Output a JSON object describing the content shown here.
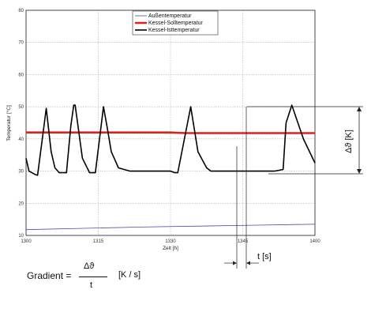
{
  "chart_data": {
    "type": "line",
    "xlabel": "Zeit [h]",
    "ylabel": "Temperatur [°C]",
    "xlim": [
      1300,
      1400
    ],
    "ylim": [
      10,
      80
    ],
    "x_ticks": [
      1300,
      1315,
      1330,
      1345,
      1400
    ],
    "y_ticks": [
      10,
      20,
      30,
      40,
      50,
      60,
      70,
      80
    ],
    "grid": true,
    "legend": {
      "position": "top-center"
    },
    "series": [
      {
        "name": "Außentemperatur",
        "color": "#4a4aa8",
        "x": [
          1300,
          1320,
          1340,
          1360,
          1380,
          1400
        ],
        "y": [
          11.8,
          12.2,
          12.6,
          12.9,
          13.2,
          13.5
        ]
      },
      {
        "name": "Kessel-Solltemperatur",
        "color": "#e0201b",
        "x": [
          1300,
          1350,
          1355,
          1400
        ],
        "y": [
          42,
          42,
          41.8,
          41.8
        ]
      },
      {
        "name": "Kessel-Isttemperatur",
        "color": "#000000",
        "x": [
          1300,
          1301,
          1303,
          1304,
          1307,
          1308.7,
          1310,
          1311.5,
          1314,
          1315.5,
          1316.5,
          1317,
          1319.5,
          1322,
          1322.5,
          1324,
          1326.8,
          1328,
          1329.5,
          1332,
          1336,
          1350,
          1351.5,
          1352.5,
          1357,
          1359.5,
          1362.5,
          1364,
          1368,
          1373.5,
          1374.5,
          1376,
          1380,
          1386,
          1389,
          1390,
          1392,
          1396,
          1400
        ],
        "y": [
          34,
          30,
          29,
          28.7,
          49.5,
          36,
          31,
          29.5,
          29.5,
          44,
          50.5,
          50.5,
          34,
          29.5,
          29.5,
          29.5,
          50,
          44,
          36,
          31,
          30,
          30,
          29.5,
          29.5,
          50,
          36,
          31,
          30,
          30,
          30,
          30,
          30,
          30,
          30,
          30.5,
          45,
          50.5,
          40,
          32.5
        ]
      }
    ],
    "annotations": {
      "delta_theta": "Δϑ [K]",
      "delta_t": "t [s]"
    }
  },
  "formula": {
    "prefix": "Gradient =",
    "numerator": "Δϑ",
    "denominator": "t",
    "unit": "[K / s]"
  }
}
